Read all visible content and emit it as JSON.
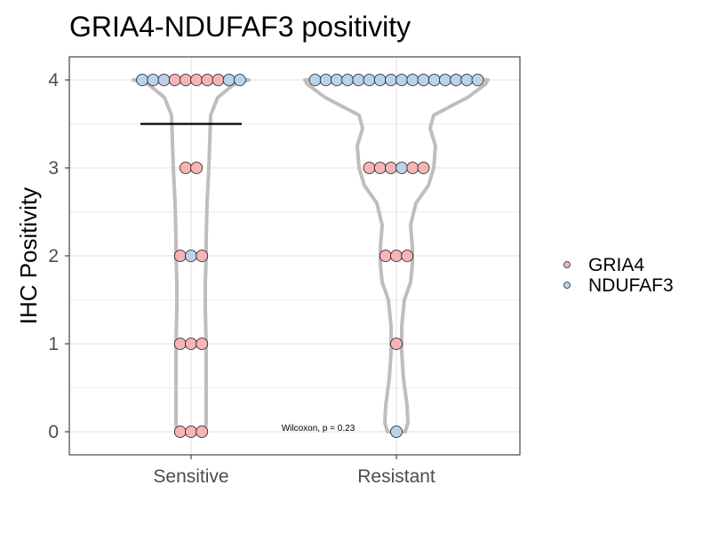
{
  "chart_data": {
    "type": "scatter",
    "title": "GRIA4-NDUFAF3 positivity",
    "xlabel": "",
    "ylabel": "IHC Positivity",
    "categories": [
      "Sensitive",
      "Resistant"
    ],
    "y_ticks": [
      "0",
      "1",
      "2",
      "3",
      "4"
    ],
    "ylim": [
      -0.27,
      4.27
    ],
    "grid": true,
    "legend_position": "right",
    "annotation": "Wilcoxon, p = 0.23",
    "reference_line": {
      "category": "Sensitive",
      "y": 3.5
    },
    "colors": {
      "GRIA4": "#f8b4b4",
      "NDUFAF3": "#b9d3ea",
      "violin": "#bebebe"
    },
    "series": [
      {
        "name": "GRIA4",
        "points": [
          {
            "x": "Sensitive",
            "y": 4,
            "count": 5
          },
          {
            "x": "Sensitive",
            "y": 3,
            "count": 2
          },
          {
            "x": "Sensitive",
            "y": 2,
            "count": 2
          },
          {
            "x": "Sensitive",
            "y": 1,
            "count": 3
          },
          {
            "x": "Sensitive",
            "y": 0,
            "count": 3
          },
          {
            "x": "Resistant",
            "y": 3,
            "count": 5
          },
          {
            "x": "Resistant",
            "y": 2,
            "count": 3
          },
          {
            "x": "Resistant",
            "y": 1,
            "count": 1
          }
        ]
      },
      {
        "name": "NDUFAF3",
        "points": [
          {
            "x": "Sensitive",
            "y": 4,
            "count": 5
          },
          {
            "x": "Sensitive",
            "y": 2,
            "count": 1
          },
          {
            "x": "Resistant",
            "y": 4,
            "count": 16
          },
          {
            "x": "Resistant",
            "y": 3,
            "count": 1
          },
          {
            "x": "Resistant",
            "y": 0,
            "count": 1
          }
        ]
      }
    ],
    "dot_rows": [
      {
        "x": "Sensitive",
        "y": 4,
        "order": [
          "NDUFAF3",
          "NDUFAF3",
          "NDUFAF3",
          "GRIA4",
          "GRIA4",
          "GRIA4",
          "GRIA4",
          "GRIA4",
          "NDUFAF3",
          "NDUFAF3"
        ]
      },
      {
        "x": "Sensitive",
        "y": 3,
        "order": [
          "GRIA4",
          "GRIA4"
        ]
      },
      {
        "x": "Sensitive",
        "y": 2,
        "order": [
          "GRIA4",
          "NDUFAF3",
          "GRIA4"
        ]
      },
      {
        "x": "Sensitive",
        "y": 1,
        "order": [
          "GRIA4",
          "GRIA4",
          "GRIA4"
        ]
      },
      {
        "x": "Sensitive",
        "y": 0,
        "order": [
          "GRIA4",
          "GRIA4",
          "GRIA4"
        ]
      },
      {
        "x": "Resistant",
        "y": 4,
        "order": [
          "NDUFAF3",
          "NDUFAF3",
          "NDUFAF3",
          "NDUFAF3",
          "NDUFAF3",
          "NDUFAF3",
          "NDUFAF3",
          "NDUFAF3",
          "NDUFAF3",
          "NDUFAF3",
          "NDUFAF3",
          "NDUFAF3",
          "NDUFAF3",
          "NDUFAF3",
          "NDUFAF3",
          "NDUFAF3"
        ]
      },
      {
        "x": "Resistant",
        "y": 3,
        "order": [
          "GRIA4",
          "GRIA4",
          "GRIA4",
          "NDUFAF3",
          "GRIA4",
          "GRIA4"
        ]
      },
      {
        "x": "Resistant",
        "y": 2,
        "order": [
          "GRIA4",
          "GRIA4",
          "GRIA4"
        ]
      },
      {
        "x": "Resistant",
        "y": 1,
        "order": [
          "GRIA4"
        ]
      },
      {
        "x": "Resistant",
        "y": 0,
        "order": [
          "NDUFAF3"
        ]
      }
    ]
  }
}
